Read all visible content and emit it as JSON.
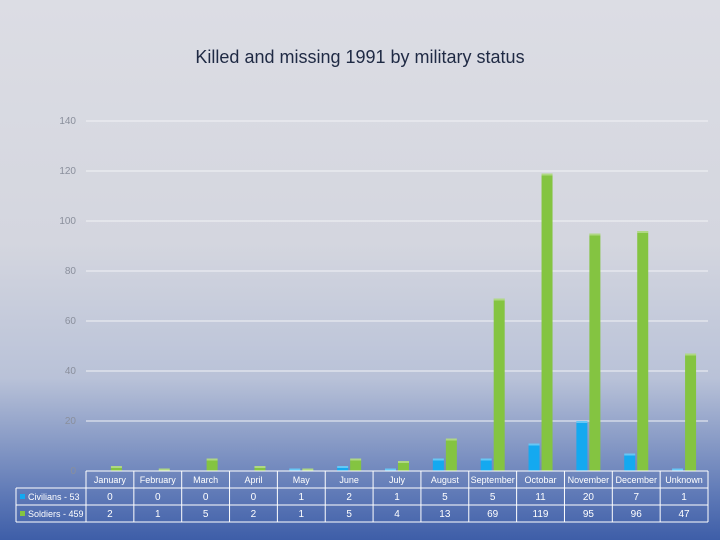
{
  "chart_data": {
    "type": "bar",
    "title": "Killed and missing 1991 by military status",
    "categories": [
      "January",
      "February",
      "March",
      "April",
      "May",
      "June",
      "July",
      "August",
      "September",
      "Octobar",
      "November",
      "December",
      "Unknown"
    ],
    "series": [
      {
        "name": "Civilians - 53",
        "color": "#14a9f0",
        "values": [
          0,
          0,
          0,
          0,
          1,
          2,
          1,
          5,
          5,
          11,
          20,
          7,
          1
        ]
      },
      {
        "name": "Soldiers - 459",
        "color": "#84c441",
        "values": [
          2,
          1,
          5,
          2,
          1,
          5,
          4,
          13,
          69,
          119,
          95,
          96,
          47
        ]
      }
    ],
    "ylim": [
      0,
      140
    ],
    "yticks": [
      0,
      20,
      40,
      60,
      80,
      100,
      120,
      140
    ],
    "grid": true,
    "legend": "data-table-left"
  }
}
